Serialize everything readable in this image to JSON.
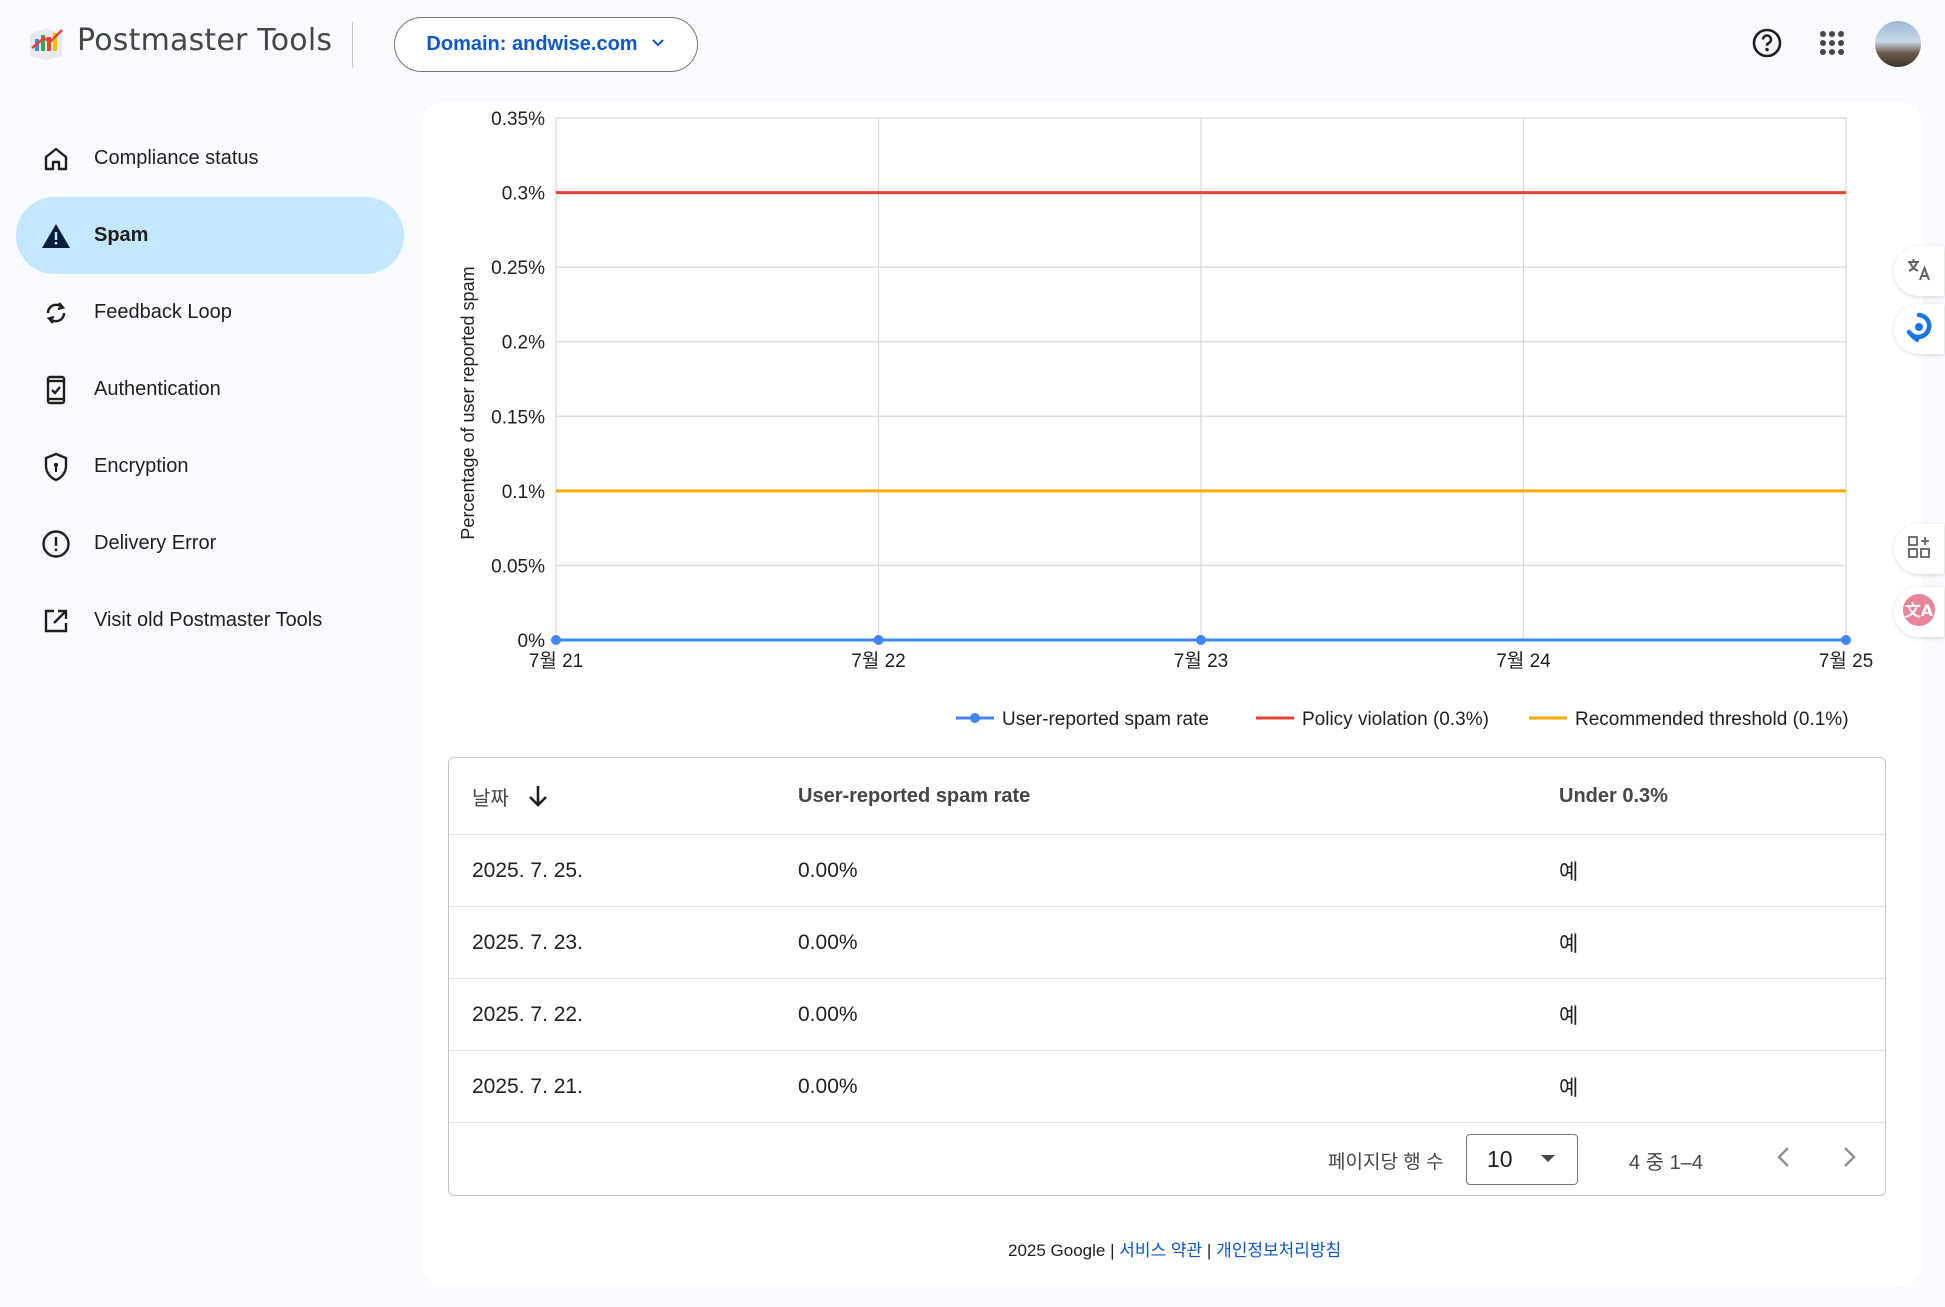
{
  "app": {
    "title": "Postmaster Tools"
  },
  "header": {
    "domain_label": "Domain: andwise.com"
  },
  "sidebar": {
    "items": [
      {
        "label": "Compliance status",
        "icon": "home-icon"
      },
      {
        "label": "Spam",
        "icon": "warning-icon",
        "active": true
      },
      {
        "label": "Feedback Loop",
        "icon": "sync-icon"
      },
      {
        "label": "Authentication",
        "icon": "phone-check-icon"
      },
      {
        "label": "Encryption",
        "icon": "shield-icon"
      },
      {
        "label": "Delivery Error",
        "icon": "error-circle-icon"
      },
      {
        "label": "Visit old Postmaster Tools",
        "icon": "open-in-new-icon"
      }
    ]
  },
  "chart_data": {
    "type": "line",
    "categories": [
      "7월 21",
      "7월 22",
      "7월 23",
      "7월 24",
      "7월 25"
    ],
    "series": [
      {
        "name": "User-reported spam rate",
        "values": [
          0,
          0,
          0,
          null,
          0
        ],
        "color": "#4285f4"
      },
      {
        "name": "Policy violation (0.3%)",
        "values": [
          0.3,
          0.3,
          0.3,
          0.3,
          0.3
        ],
        "color": "#ea4335"
      },
      {
        "name": "Recommended threshold (0.1%)",
        "values": [
          0.1,
          0.1,
          0.1,
          0.1,
          0.1
        ],
        "color": "#f9ab00"
      }
    ],
    "ylabel": "Percentage of user reported spam",
    "ylim": [
      0,
      0.35
    ],
    "yticks": [
      "0%",
      "0.05%",
      "0.1%",
      "0.15%",
      "0.2%",
      "0.25%",
      "0.3%",
      "0.35%"
    ],
    "grid": true,
    "legend": "bottom-right"
  },
  "table": {
    "headers": {
      "date": "날짜",
      "rate": "User-reported spam rate",
      "under": "Under 0.3%"
    },
    "rows": [
      {
        "date": "2025. 7. 25.",
        "rate": "0.00%",
        "under": "예"
      },
      {
        "date": "2025. 7. 23.",
        "rate": "0.00%",
        "under": "예"
      },
      {
        "date": "2025. 7. 22.",
        "rate": "0.00%",
        "under": "예"
      },
      {
        "date": "2025. 7. 21.",
        "rate": "0.00%",
        "under": "예"
      }
    ],
    "rows_per_page_label": "페이지당 행 수",
    "rows_per_page": "10",
    "range": "4 중 1–4"
  },
  "footer": {
    "copyright": "2025 Google |",
    "terms": "서비스 약관",
    "sep": "|",
    "privacy": "개인정보처리방침"
  }
}
